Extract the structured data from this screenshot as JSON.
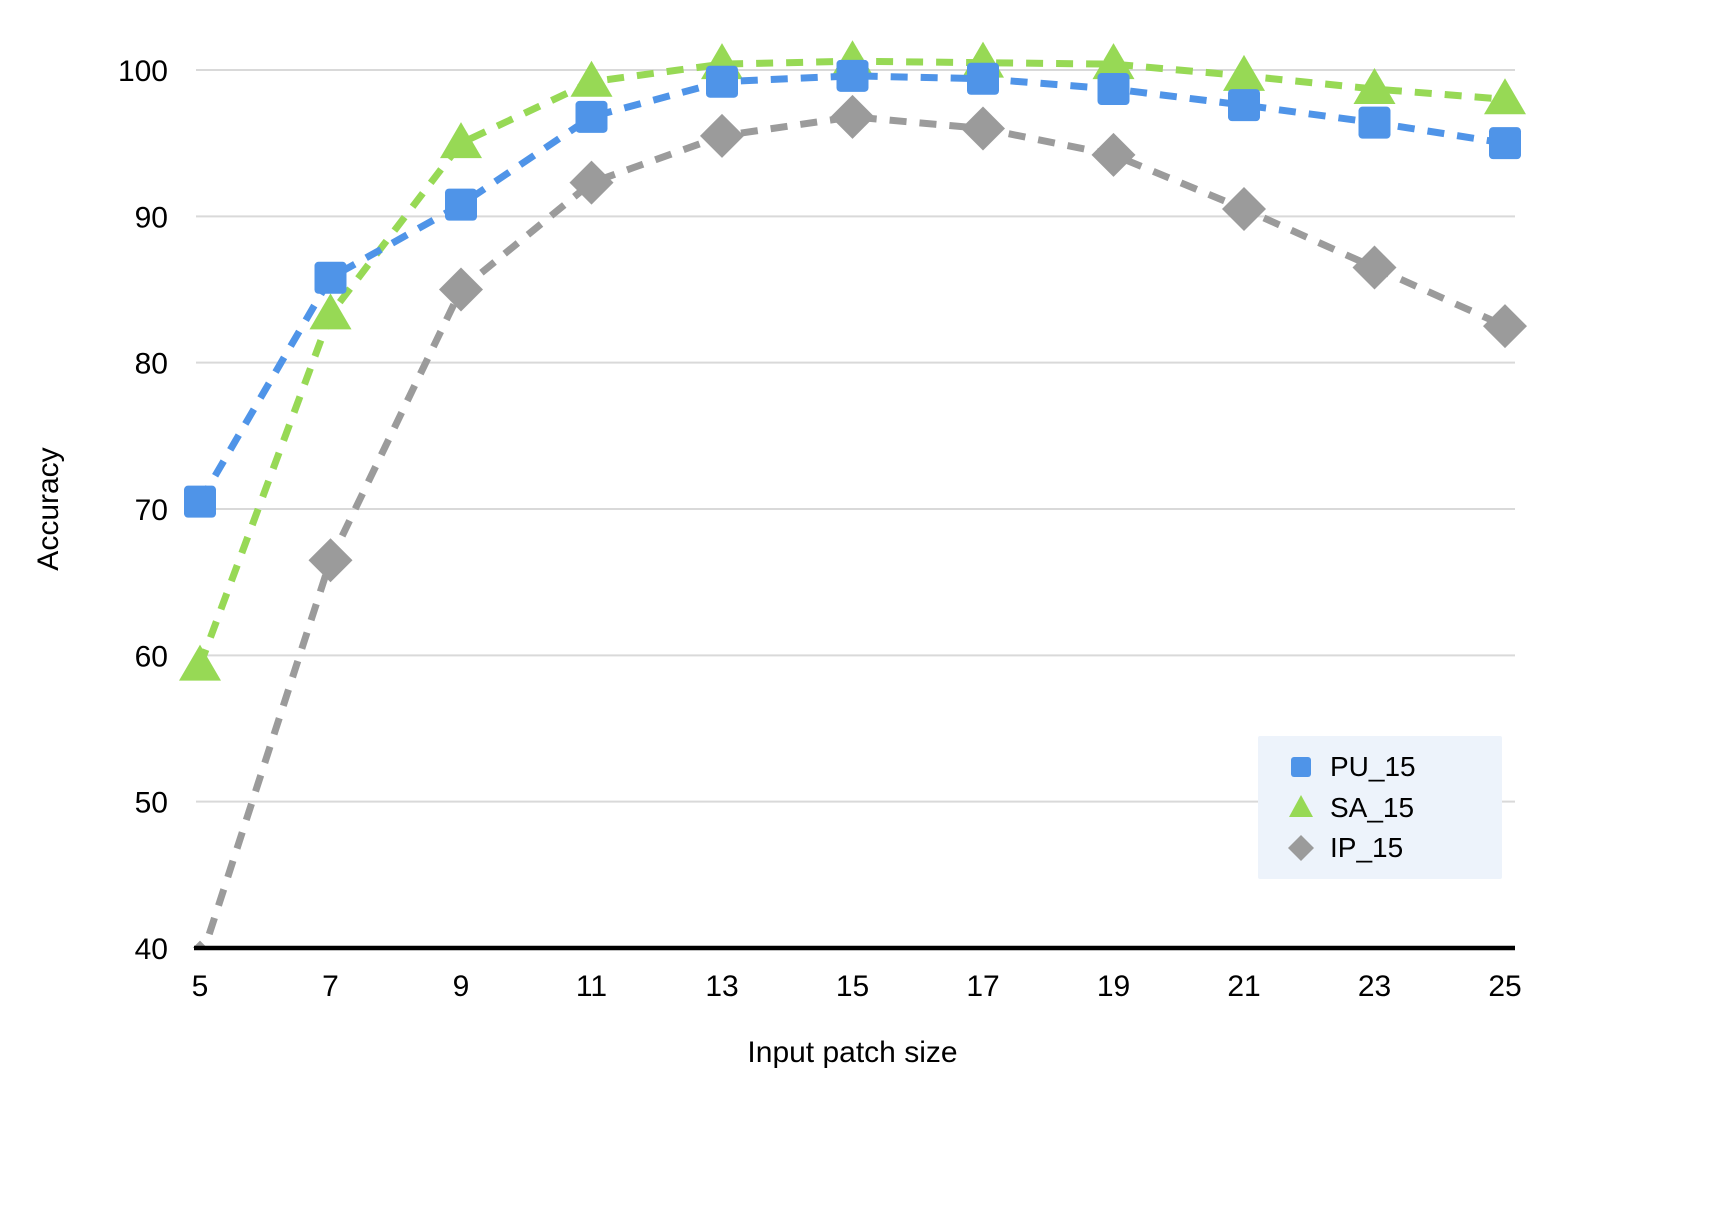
{
  "chart_data": {
    "type": "line",
    "title": "",
    "xlabel": "Input patch size",
    "ylabel": "Accuracy",
    "x": [
      5,
      7,
      9,
      11,
      13,
      15,
      17,
      19,
      21,
      23,
      25
    ],
    "xticks": [
      5,
      7,
      9,
      11,
      13,
      15,
      17,
      19,
      21,
      23,
      25
    ],
    "yticks": [
      40,
      50,
      60,
      70,
      80,
      90,
      100
    ],
    "xlim": [
      5,
      25
    ],
    "ylim": [
      40,
      100
    ],
    "grid": "horizontal",
    "line_style": "dashed",
    "legend_position": "bottom-right",
    "series": [
      {
        "name": "PU_15",
        "marker": "square",
        "color": "#4f94e8",
        "values": [
          70.5,
          85.8,
          90.8,
          96.8,
          99.2,
          99.6,
          99.4,
          98.7,
          97.6,
          96.4,
          95.0
        ]
      },
      {
        "name": "SA_15",
        "marker": "triangle",
        "color": "#97d955",
        "values": [
          59.3,
          83.3,
          95.0,
          99.2,
          100.4,
          100.6,
          100.5,
          100.4,
          99.6,
          98.7,
          98.0
        ]
      },
      {
        "name": "IP_15",
        "marker": "diamond",
        "color": "#9b9b9b",
        "values": [
          39.0,
          66.5,
          85.0,
          92.3,
          95.5,
          96.8,
          96.0,
          94.2,
          90.5,
          86.5,
          82.5
        ]
      }
    ],
    "colors": {
      "grid": "#d9d9d9",
      "axis": "#000000",
      "text": "#000000",
      "legend_bg": "#edf3fb"
    }
  },
  "legend": {
    "items": [
      {
        "label": "PU_15"
      },
      {
        "label": "SA_15"
      },
      {
        "label": "IP_15"
      }
    ]
  }
}
